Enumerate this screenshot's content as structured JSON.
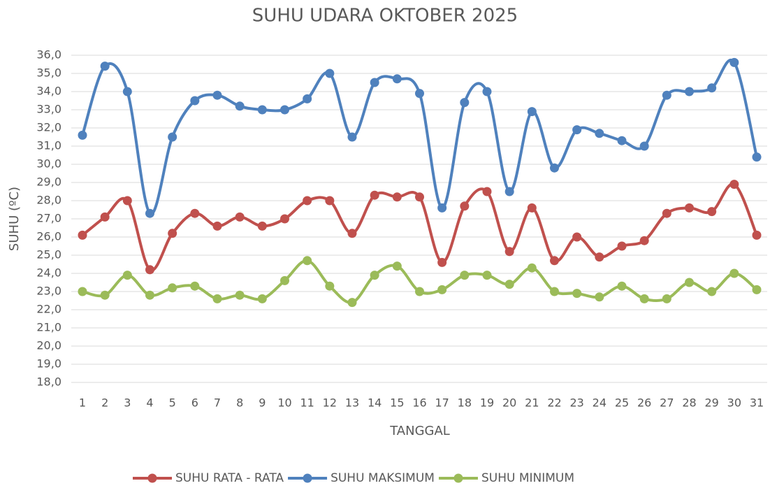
{
  "chart_data": {
    "type": "line",
    "title": "SUHU UDARA OKTOBER 2025",
    "x_label": "TANGGAL",
    "y_label": "SUHU (ºC)",
    "categories": [
      "1",
      "2",
      "3",
      "4",
      "5",
      "6",
      "7",
      "8",
      "9",
      "10",
      "11",
      "12",
      "13",
      "14",
      "15",
      "16",
      "17",
      "18",
      "19",
      "20",
      "21",
      "22",
      "23",
      "24",
      "25",
      "26",
      "27",
      "28",
      "29",
      "30",
      "31"
    ],
    "series": [
      {
        "name": "SUHU RATA - RATA",
        "color": "#c0504d",
        "values": [
          26.1,
          27.1,
          28.0,
          24.2,
          26.2,
          27.3,
          26.6,
          27.1,
          26.6,
          27.0,
          28.0,
          28.0,
          26.2,
          28.3,
          28.2,
          28.2,
          24.6,
          27.7,
          28.5,
          25.2,
          27.6,
          24.7,
          26.0,
          24.9,
          25.5,
          25.8,
          27.3,
          27.6,
          27.4,
          28.9,
          26.1
        ]
      },
      {
        "name": "SUHU MAKSIMUM",
        "color": "#4f81bd",
        "values": [
          31.6,
          35.4,
          34.0,
          27.3,
          31.5,
          33.5,
          33.8,
          33.2,
          33.0,
          33.0,
          33.6,
          35.0,
          31.5,
          34.5,
          34.7,
          33.9,
          27.6,
          33.4,
          34.0,
          28.5,
          32.9,
          29.8,
          31.9,
          31.7,
          31.3,
          31.0,
          33.8,
          34.0,
          34.2,
          35.6,
          30.4
        ]
      },
      {
        "name": "SUHU MINIMUM",
        "color": "#9bbb59",
        "values": [
          23.0,
          22.8,
          23.9,
          22.8,
          23.2,
          23.3,
          22.6,
          22.8,
          22.6,
          23.6,
          24.7,
          23.3,
          22.4,
          23.9,
          24.4,
          23.0,
          23.1,
          23.9,
          23.9,
          23.4,
          24.3,
          23.0,
          22.9,
          22.7,
          23.3,
          22.6,
          22.6,
          23.5,
          23.0,
          24.0,
          23.1
        ]
      }
    ],
    "ylim": [
      18,
      36
    ],
    "yticks": [
      {
        "value": 18,
        "label": "18,0"
      },
      {
        "value": 19,
        "label": "19,0"
      },
      {
        "value": 20,
        "label": "20,0"
      },
      {
        "value": 21,
        "label": "21,0"
      },
      {
        "value": 22,
        "label": "22,0"
      },
      {
        "value": 23,
        "label": "23,0"
      },
      {
        "value": 24,
        "label": "24,0"
      },
      {
        "value": 25,
        "label": "25,0"
      },
      {
        "value": 26,
        "label": "26,0"
      },
      {
        "value": 27,
        "label": "27,0"
      },
      {
        "value": 28,
        "label": "28,0"
      },
      {
        "value": 29,
        "label": "29,0"
      },
      {
        "value": 30,
        "label": "30,0"
      },
      {
        "value": 31,
        "label": "31,0"
      },
      {
        "value": 32,
        "label": "32,0"
      },
      {
        "value": 33,
        "label": "33,0"
      },
      {
        "value": 34,
        "label": "34,0"
      },
      {
        "value": 35,
        "label": "35,0"
      },
      {
        "value": 36,
        "label": "36,0"
      }
    ],
    "grid": true,
    "smooth": true,
    "legend": "bottom"
  }
}
